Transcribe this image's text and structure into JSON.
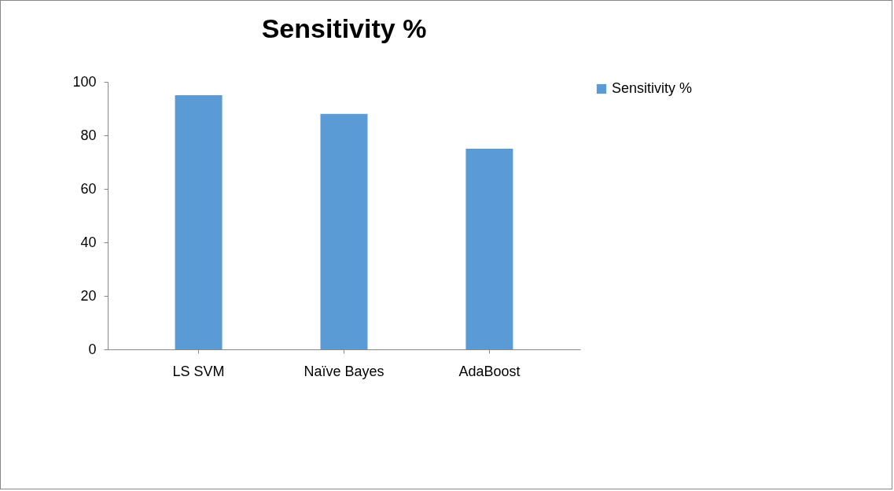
{
  "chart_data": {
    "type": "bar",
    "title": "Sensitivity %",
    "categories": [
      "LS SVM",
      "Naïve Bayes",
      "AdaBoost"
    ],
    "series": [
      {
        "name": "Sensitivity %",
        "color": "#5b9bd5",
        "values": [
          95,
          88,
          75
        ]
      }
    ],
    "ylim": [
      0,
      100
    ],
    "yticks": [
      0,
      20,
      40,
      60,
      80,
      100
    ],
    "legend": "right"
  }
}
